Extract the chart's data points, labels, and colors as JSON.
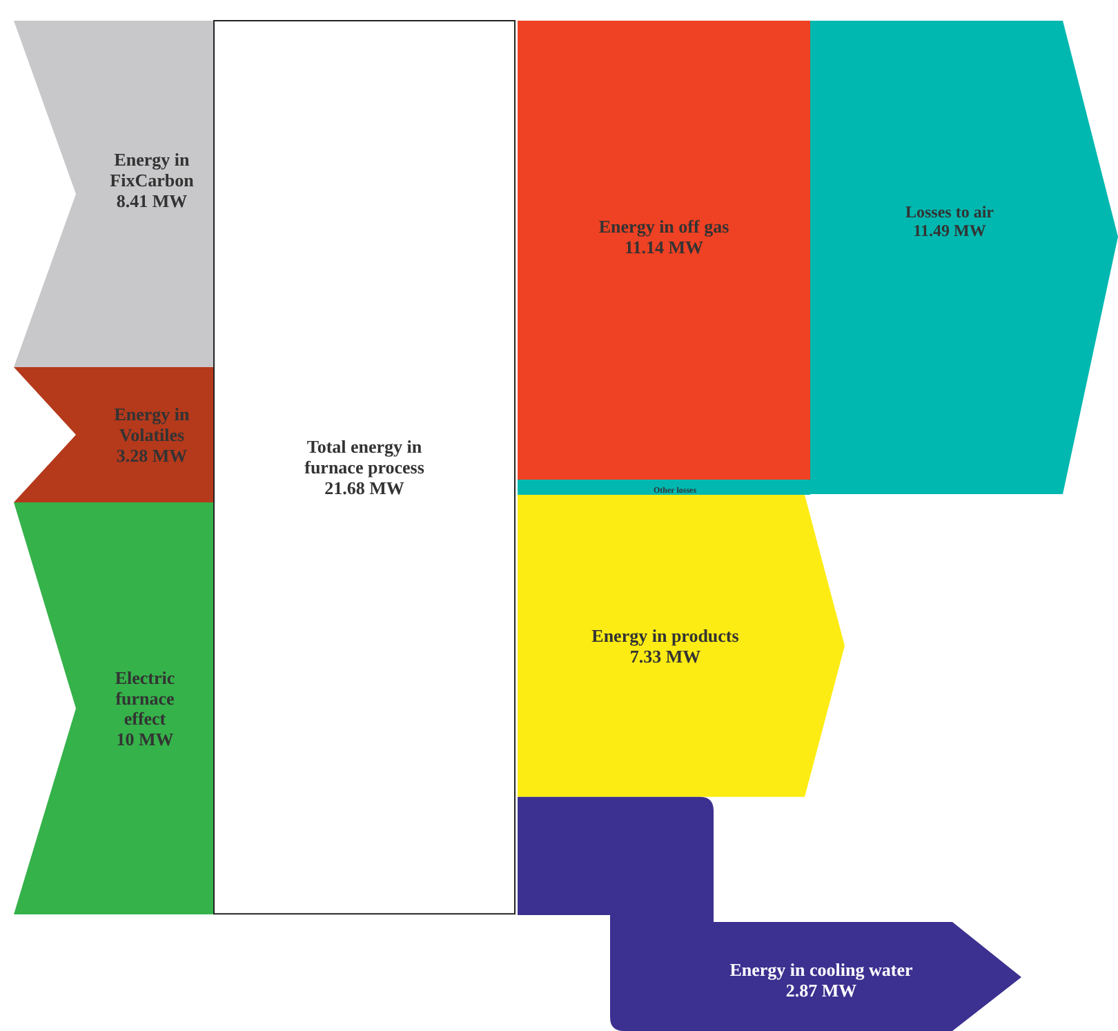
{
  "chart_data": {
    "type": "other",
    "categories": [
      "Energy in FixCarbon",
      "Energy in Volatiles",
      "Electric furnace effect",
      "Total energy in furnace process",
      "Energy in off gas",
      "Other losses",
      "Energy in products",
      "Energy in cooling water",
      "Losses to air"
    ],
    "values": [
      8.41,
      3.28,
      10,
      21.68,
      11.14,
      null,
      7.33,
      2.87,
      11.49
    ],
    "value_labels": [
      "8.41 MW",
      "3.28 MW",
      "10 MW",
      "21.68 MW",
      "11.14 MW",
      null,
      "7.33 MW",
      "2.87 MW",
      "11.49 MW"
    ],
    "colors": [
      "#c8c8ca",
      "#b5391b",
      "#35b24a",
      "#ffffff",
      "#ef4123",
      "#00b8b0",
      "#fcec14",
      "#3c3090",
      "#00b8b0"
    ]
  }
}
